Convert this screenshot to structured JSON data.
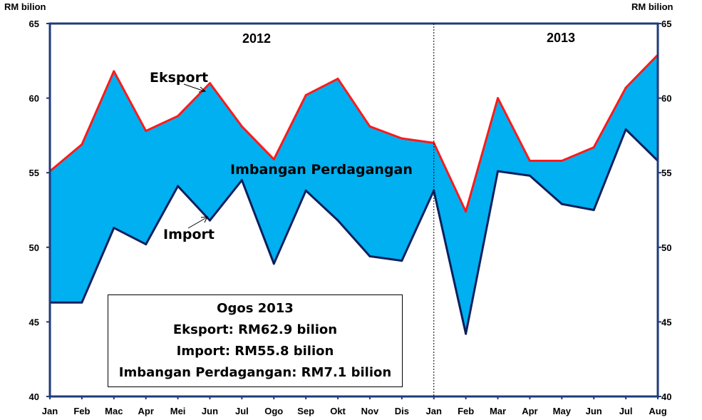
{
  "units": {
    "left": "RM bilion",
    "right": "RM bilion"
  },
  "years": [
    "2012",
    "2013"
  ],
  "annotations": {
    "export": "Eksport",
    "import": "Import",
    "balance": "Imbangan Perdagangan"
  },
  "infobox": {
    "title": "Ogos 2013",
    "line1": "Eksport: RM62.9 bilion",
    "line2": "Import: RM55.8 bilion",
    "line3": "Imbangan Perdagangan: RM7.1 bilion"
  },
  "colors": {
    "export_line": "#ff1a1a",
    "import_line": "#0d1f5c",
    "fill": "#00b0f0",
    "axis": "#1f3a7a"
  },
  "chart_data": {
    "type": "area",
    "x": [
      "Jan",
      "Feb",
      "Mac",
      "Apr",
      "Mei",
      "Jun",
      "Jul",
      "Ogo",
      "Sep",
      "Okt",
      "Nov",
      "Dis",
      "Jan",
      "Feb",
      "Mar",
      "Apr",
      "May",
      "Jun",
      "Jul",
      "Aug"
    ],
    "series": [
      {
        "name": "Eksport",
        "values": [
          55.1,
          56.9,
          61.8,
          57.8,
          58.8,
          61.0,
          58.1,
          55.9,
          60.2,
          61.3,
          58.1,
          57.3,
          57.0,
          52.4,
          60.0,
          55.8,
          55.8,
          56.7,
          60.7,
          62.9
        ]
      },
      {
        "name": "Import",
        "values": [
          46.3,
          46.3,
          51.3,
          50.2,
          54.1,
          51.8,
          54.5,
          48.9,
          53.8,
          51.8,
          49.4,
          49.1,
          53.8,
          44.2,
          55.1,
          54.8,
          52.9,
          52.5,
          57.9,
          55.8
        ]
      }
    ],
    "ylim": [
      40,
      65
    ],
    "yticks": [
      40,
      45,
      50,
      55,
      60,
      65
    ],
    "grid": false,
    "legend": "none"
  }
}
